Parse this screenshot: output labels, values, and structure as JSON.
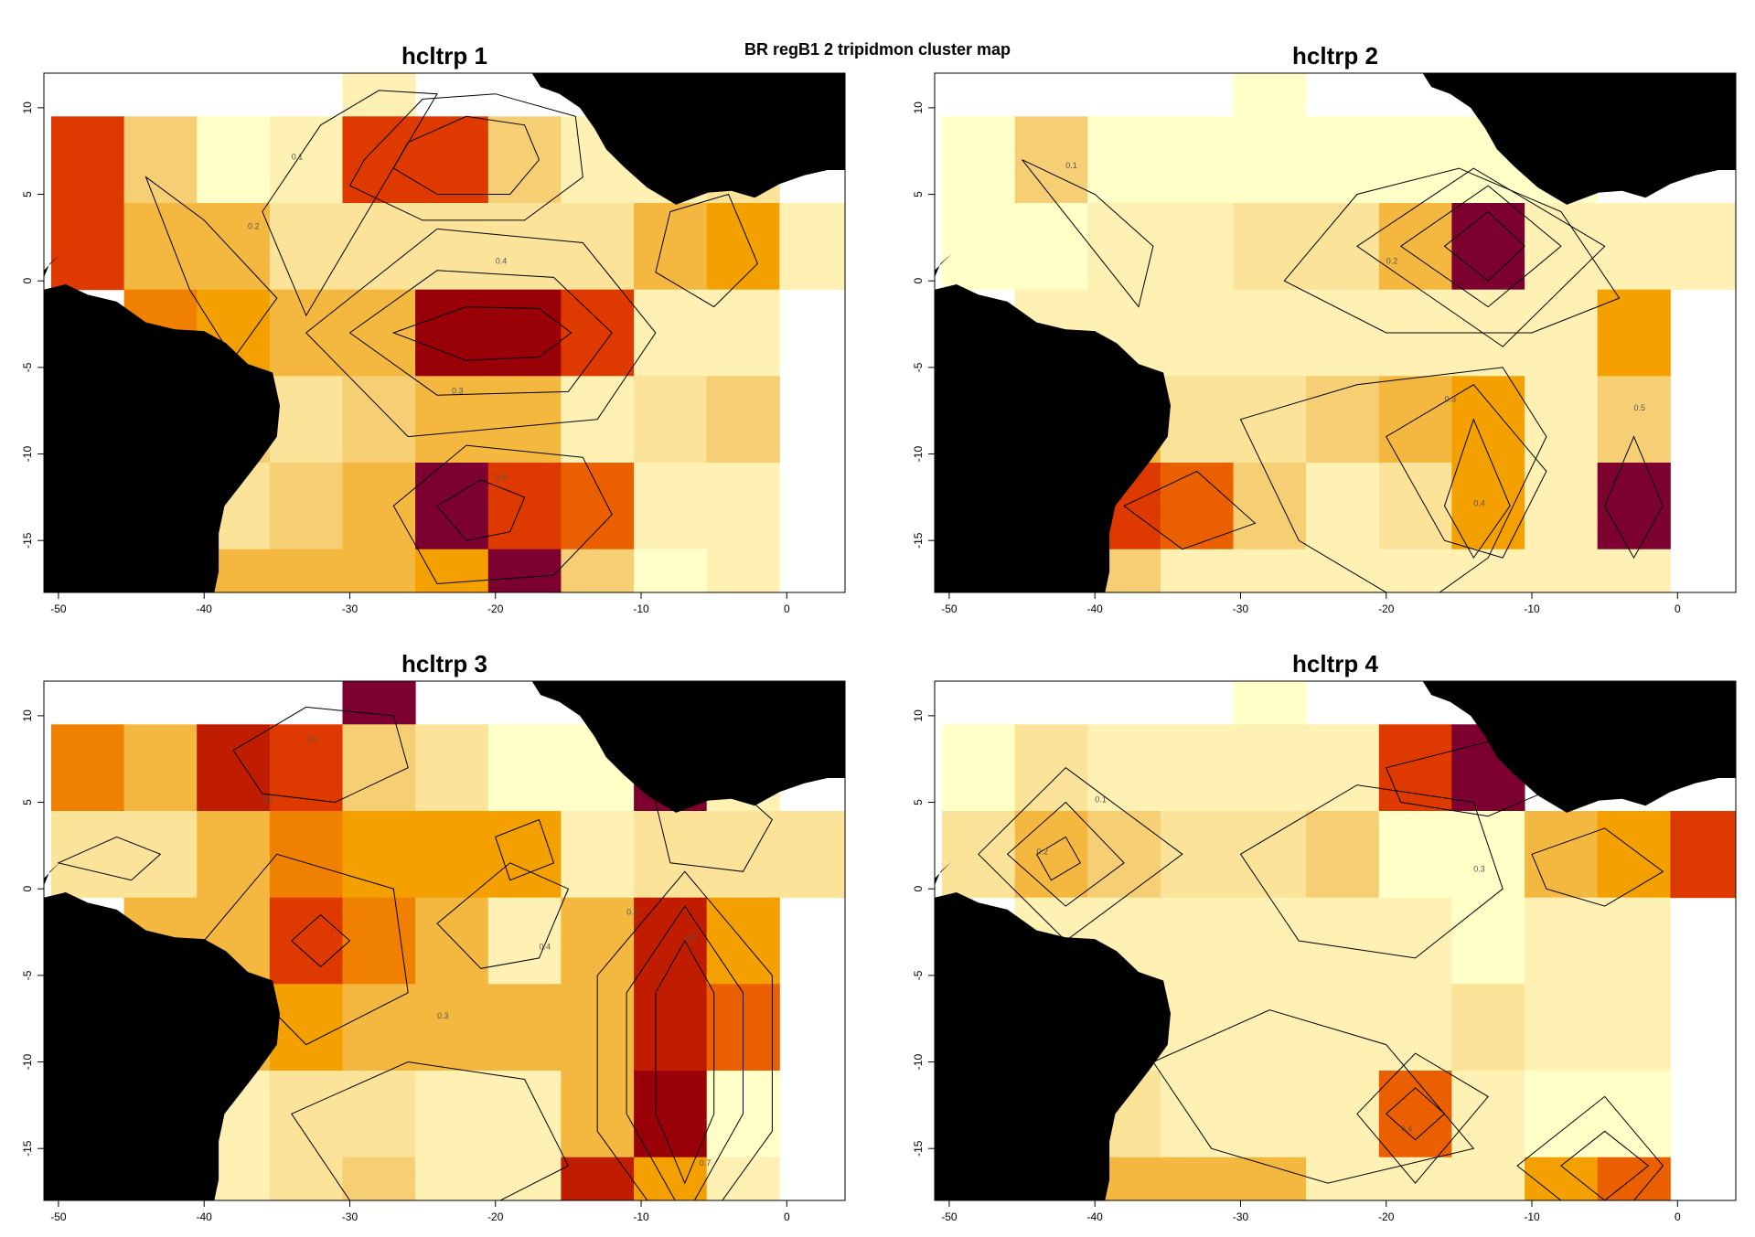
{
  "title": "BR regB1 2 tripidmon cluster map",
  "colors": {
    "scale": [
      "#ffffc8",
      "#fff1b3",
      "#fbe39a",
      "#f6cf74",
      "#f4b840",
      "#f4a000",
      "#f08000",
      "#ea6000",
      "#de3a00",
      "#c01c00",
      "#9a0008",
      "#7c0030"
    ],
    "land": "#000000",
    "contour": "#000000",
    "frame": "#000000"
  },
  "chart_data": {
    "type": "heatmap",
    "subtype": "gridded map with contour overlay",
    "x_ticks": [
      -50,
      -40,
      -30,
      -20,
      -10,
      0
    ],
    "y_ticks": [
      10,
      5,
      0,
      -5,
      -10,
      -15
    ],
    "xlim": [
      -51,
      4
    ],
    "ylim": [
      -18,
      12
    ],
    "grid_lon": [
      -48,
      -43,
      -38,
      -33,
      -28,
      -23,
      -18,
      -13,
      -8,
      -3,
      2
    ],
    "grid_lat": [
      12,
      7,
      2,
      -3,
      -8,
      -13,
      -18
    ],
    "cell_size_deg": 5,
    "panels": [
      {
        "title": "hcltrp 1",
        "grid": [
          [
            null,
            null,
            null,
            null,
            1,
            null,
            null,
            null,
            null,
            null,
            null
          ],
          [
            8,
            3,
            0,
            1,
            8,
            8,
            3,
            1,
            1,
            2,
            null
          ],
          [
            8,
            4,
            4,
            2,
            2,
            2,
            2,
            2,
            4,
            5,
            1
          ],
          [
            null,
            6,
            5,
            4,
            4,
            10,
            10,
            8,
            1,
            1,
            null
          ],
          [
            null,
            null,
            3,
            2,
            3,
            4,
            4,
            1,
            2,
            3,
            null
          ],
          [
            null,
            null,
            2,
            3,
            4,
            11,
            8,
            7,
            1,
            1,
            null
          ],
          [
            null,
            6,
            4,
            4,
            4,
            5,
            11,
            3,
            0,
            1,
            null
          ]
        ],
        "contour_labels": [
          "0.1",
          "0.2",
          "0.3",
          "0.4",
          "0.5"
        ]
      },
      {
        "title": "hcltrp 2",
        "grid": [
          [
            null,
            null,
            null,
            null,
            0,
            null,
            null,
            null,
            null,
            null,
            null
          ],
          [
            0,
            3,
            0,
            0,
            0,
            0,
            0,
            0,
            0,
            null,
            null
          ],
          [
            0,
            0,
            1,
            1,
            2,
            2,
            4,
            11,
            1,
            1,
            1
          ],
          [
            null,
            1,
            1,
            1,
            1,
            1,
            1,
            1,
            1,
            5,
            null
          ],
          [
            null,
            null,
            4,
            2,
            2,
            3,
            4,
            5,
            1,
            3,
            null
          ],
          [
            null,
            null,
            8,
            7,
            3,
            1,
            2,
            5,
            1,
            11,
            null
          ],
          [
            null,
            5,
            3,
            1,
            1,
            1,
            1,
            1,
            1,
            1,
            null
          ]
        ],
        "contour_labels": [
          "0.1",
          "0.2",
          "0.3",
          "0.4",
          "0.5"
        ]
      },
      {
        "title": "hcltrp 3",
        "grid": [
          [
            null,
            null,
            null,
            null,
            11,
            null,
            null,
            null,
            null,
            null,
            null
          ],
          [
            6,
            4,
            9,
            8,
            3,
            2,
            0,
            0,
            11,
            1,
            null
          ],
          [
            2,
            2,
            4,
            6,
            5,
            5,
            5,
            1,
            2,
            2,
            2
          ],
          [
            null,
            4,
            4,
            8,
            6,
            4,
            1,
            4,
            9,
            5,
            null
          ],
          [
            null,
            null,
            4,
            5,
            4,
            4,
            4,
            4,
            9,
            7,
            null
          ],
          [
            null,
            null,
            1,
            2,
            2,
            1,
            1,
            4,
            10,
            0,
            null
          ],
          [
            null,
            null,
            1,
            2,
            3,
            1,
            1,
            9,
            5,
            1,
            null
          ]
        ],
        "contour_labels": [
          "0.1",
          "0.2",
          "0.3",
          "0.4",
          "0.5",
          "0.6",
          "0.7"
        ]
      },
      {
        "title": "hcltrp 4",
        "grid": [
          [
            null,
            null,
            null,
            null,
            0,
            null,
            null,
            null,
            null,
            null,
            null
          ],
          [
            0,
            2,
            1,
            1,
            1,
            1,
            8,
            11,
            null,
            null,
            null
          ],
          [
            2,
            4,
            3,
            2,
            2,
            3,
            0,
            0,
            4,
            5,
            8
          ],
          [
            null,
            1,
            1,
            1,
            1,
            1,
            1,
            0,
            1,
            1,
            null
          ],
          [
            null,
            null,
            1,
            1,
            1,
            1,
            1,
            2,
            1,
            1,
            null
          ],
          [
            null,
            null,
            2,
            1,
            1,
            1,
            7,
            1,
            0,
            0,
            null
          ],
          [
            null,
            0,
            4,
            4,
            4,
            1,
            1,
            1,
            5,
            7,
            null
          ]
        ],
        "contour_labels": [
          "0.1",
          "0.2",
          "0.3",
          "0.4"
        ]
      }
    ]
  }
}
